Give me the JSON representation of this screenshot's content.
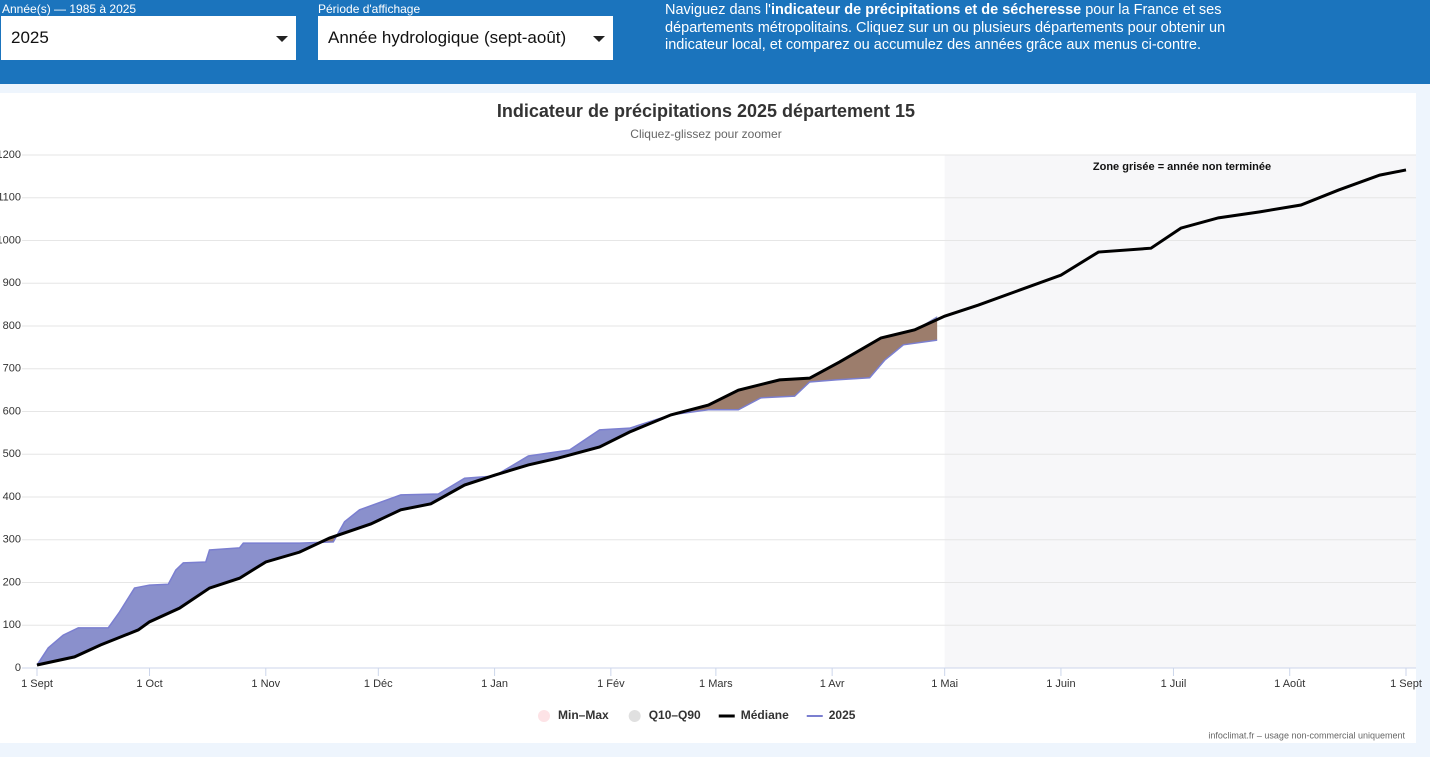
{
  "header": {
    "year_label": "Année(s) — 1985 à 2025",
    "year_value": "2025",
    "period_label": "Période d'affichage",
    "period_value": "Année hydrologique (sept-août)",
    "intro_pre": "Naviguez dans l'",
    "intro_bold": "indicateur de précipitations et de sécheresse",
    "intro_post": " pour la France et ses départements métropolitains. Cliquez sur un ou plusieurs départements pour obtenir un indicateur local, et comparez ou accumulez des années grâce aux menus ci-contre."
  },
  "chart_data": {
    "type": "line",
    "title": "Indicateur de précipitations 2025 département 15",
    "subtitle": "Cliquez-glissez pour zoomer",
    "annotation": "Zone grisée = année non terminée",
    "credit": "infoclimat.fr – usage non-commercial uniquement",
    "xlim": [
      0,
      365
    ],
    "xticks": [
      {
        "value": 0,
        "label": "1 Sept"
      },
      {
        "value": 30,
        "label": "1 Oct"
      },
      {
        "value": 61,
        "label": "1 Nov"
      },
      {
        "value": 91,
        "label": "1 Déc"
      },
      {
        "value": 122,
        "label": "1 Jan"
      },
      {
        "value": 153,
        "label": "1 Fév"
      },
      {
        "value": 181,
        "label": "1 Mars"
      },
      {
        "value": 212,
        "label": "1 Avr"
      },
      {
        "value": 242,
        "label": "1 Mai"
      },
      {
        "value": 273,
        "label": "1 Juin"
      },
      {
        "value": 303,
        "label": "1 Juil"
      },
      {
        "value": 334,
        "label": "1 Août"
      },
      {
        "value": 365,
        "label": "1 Sept"
      }
    ],
    "ylim": [
      0,
      1200
    ],
    "yticks": [
      0,
      100,
      200,
      300,
      400,
      500,
      600,
      700,
      800,
      900,
      1000,
      1100,
      1200
    ],
    "grid": true,
    "legend_extra": [
      {
        "name": "Min–Max",
        "color": "#fde3e6"
      },
      {
        "name": "Q10–Q90",
        "color": "#e0e0e0"
      }
    ],
    "series": [
      {
        "name": "Médiane",
        "color": "#000000",
        "x": [
          0,
          10,
          17,
          27,
          30,
          38,
          46,
          54,
          61,
          70,
          78,
          89,
          97,
          105,
          114,
          122,
          131,
          139,
          150,
          158,
          169,
          179,
          187,
          198,
          206,
          214,
          225,
          234,
          242,
          251,
          262,
          273,
          283,
          297,
          305,
          315,
          326,
          337,
          347,
          358,
          365
        ],
        "values": [
          7,
          26,
          54,
          89,
          108,
          140,
          187,
          210,
          248,
          271,
          304,
          337,
          370,
          384,
          428,
          451,
          475,
          491,
          517,
          552,
          592,
          615,
          650,
          674,
          678,
          716,
          772,
          791,
          823,
          849,
          884,
          919,
          973,
          982,
          1029,
          1053,
          1067,
          1083,
          1118,
          1153,
          1165
        ]
      },
      {
        "name": "2025",
        "color": "#7b7fd0",
        "x": [
          0,
          3,
          7,
          11,
          19,
          22,
          26,
          30,
          35,
          37,
          39,
          45,
          46,
          54,
          55,
          70,
          79,
          82,
          86,
          97,
          107,
          114,
          122,
          131,
          142,
          150,
          158,
          169,
          179,
          187,
          193,
          202,
          206,
          213,
          222,
          226,
          231,
          240
        ],
        "values": [
          7,
          47,
          77,
          94,
          94,
          131,
          187,
          194,
          196,
          229,
          246,
          248,
          276,
          281,
          292,
          292,
          295,
          342,
          370,
          405,
          407,
          444,
          449,
          496,
          510,
          557,
          561,
          592,
          604,
          604,
          632,
          636,
          669,
          674,
          679,
          720,
          756,
          767
        ]
      }
    ]
  }
}
